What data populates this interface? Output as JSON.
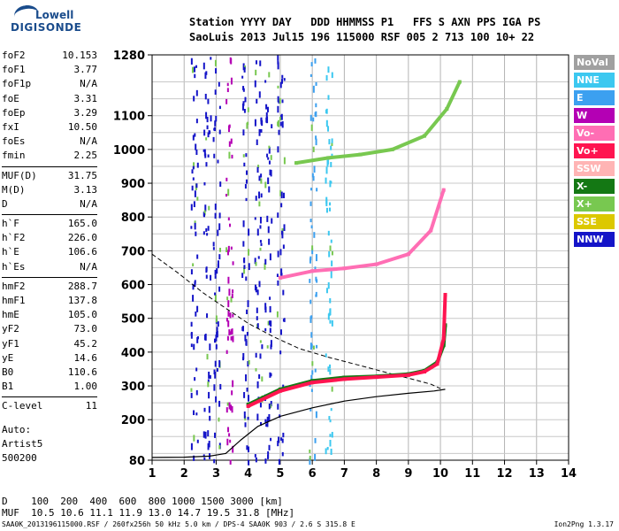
{
  "header": {
    "logo_line1": "Lowell",
    "logo_line2": "DIGISONDE",
    "row1": "Station YYYY DAY   DDD HHMMSS P1   FFS S AXN PPS IGA PS",
    "row2": "SaoLuis 2013 Jul15 196 115000 RSF 005 2 713 100 10+ 22"
  },
  "params": [
    {
      "label": "foF2",
      "value": "10.153"
    },
    {
      "label": "foF1",
      "value": "3.77"
    },
    {
      "label": "foF1p",
      "value": "N/A"
    },
    {
      "label": "foE",
      "value": "3.31"
    },
    {
      "label": "foEp",
      "value": "3.29"
    },
    {
      "label": "fxI",
      "value": "10.50"
    },
    {
      "label": "foEs",
      "value": "N/A"
    },
    {
      "label": "fmin",
      "value": "2.25"
    },
    {
      "label": "MUF(D)",
      "value": "31.75"
    },
    {
      "label": "M(D)",
      "value": "3.13"
    },
    {
      "label": "D",
      "value": "N/A"
    },
    {
      "label": "h`F",
      "value": "165.0"
    },
    {
      "label": "h`F2",
      "value": "226.0"
    },
    {
      "label": "h`E",
      "value": "106.6"
    },
    {
      "label": "h`Es",
      "value": "N/A"
    },
    {
      "label": "hmF2",
      "value": "288.7"
    },
    {
      "label": "hmF1",
      "value": "137.8"
    },
    {
      "label": "hmE",
      "value": "105.0"
    },
    {
      "label": "yF2",
      "value": "73.0"
    },
    {
      "label": "yF1",
      "value": "45.2"
    },
    {
      "label": "yE",
      "value": "14.6"
    },
    {
      "label": "B0",
      "value": "110.6"
    },
    {
      "label": "B1",
      "value": "1.00"
    },
    {
      "label": "C-level",
      "value": "11"
    }
  ],
  "auto_lines": [
    "Auto:",
    "Artist5",
    "500200"
  ],
  "legend": [
    {
      "label": "NoVal",
      "color": "#a0a0a0"
    },
    {
      "label": "NNE",
      "color": "#3cc8f0"
    },
    {
      "label": "E",
      "color": "#3ca0f0"
    },
    {
      "label": "W",
      "color": "#b400b4"
    },
    {
      "label": "Vo-",
      "color": "#ff6eb4"
    },
    {
      "label": "Vo+",
      "color": "#ff1450"
    },
    {
      "label": "SSW",
      "color": "#ffb4b4"
    },
    {
      "label": "X-",
      "color": "#147814"
    },
    {
      "label": "X+",
      "color": "#78c850"
    },
    {
      "label": "SSE",
      "color": "#dcc800"
    },
    {
      "label": "NNW",
      "color": "#1414c8"
    }
  ],
  "muf_table": {
    "row_d": "D    100  200  400  600  800 1000 1500 3000 [km]",
    "row_muf": "MUF  10.5 10.6 11.1 11.9 13.0 14.7 19.5 31.8 [MHz]"
  },
  "footer": {
    "left": "SAA0K_2013196115000.RSF / 260fx256h 50 kHz 5.0 km / DPS-4 SAA0K 903 / 2.6 S 315.8 E",
    "right": "Ion2Png 1.3.17"
  },
  "chart_data": {
    "type": "scatter",
    "x_ticks": [
      1,
      2,
      3,
      4,
      5,
      6,
      7,
      8,
      9,
      10,
      11,
      12,
      13,
      14
    ],
    "y_ticks": [
      80,
      200,
      300,
      400,
      500,
      600,
      700,
      800,
      900,
      1000,
      1100,
      1280
    ],
    "xlim": [
      1,
      14
    ],
    "ylim": [
      80,
      1280
    ],
    "grid": true,
    "profile_curve": [
      [
        1.0,
        88
      ],
      [
        2.0,
        89
      ],
      [
        2.8,
        92
      ],
      [
        3.3,
        100
      ],
      [
        3.77,
        140
      ],
      [
        4.3,
        180
      ],
      [
        5.0,
        210
      ],
      [
        6.0,
        235
      ],
      [
        7.0,
        255
      ],
      [
        8.0,
        268
      ],
      [
        9.0,
        278
      ],
      [
        9.8,
        285
      ],
      [
        10.15,
        290
      ]
    ],
    "model_curve": [
      [
        1.0,
        690
      ],
      [
        1.8,
        635
      ],
      [
        2.6,
        575
      ],
      [
        3.3,
        530
      ],
      [
        4.0,
        485
      ],
      [
        4.8,
        445
      ],
      [
        5.6,
        410
      ],
      [
        6.5,
        385
      ],
      [
        7.5,
        360
      ],
      [
        8.5,
        335
      ],
      [
        9.2,
        318
      ],
      [
        9.7,
        305
      ],
      [
        10.0,
        292
      ]
    ],
    "traces": [
      {
        "name": "X-",
        "color": "#147814",
        "points": [
          [
            4.0,
            245
          ],
          [
            5.0,
            290
          ],
          [
            6.0,
            315
          ],
          [
            7.0,
            325
          ],
          [
            8.0,
            328
          ],
          [
            9.0,
            335
          ],
          [
            9.5,
            345
          ],
          [
            9.9,
            370
          ],
          [
            10.1,
            420
          ],
          [
            10.15,
            480
          ]
        ]
      },
      {
        "name": "Vo+",
        "color": "#ff1450",
        "points": [
          [
            4.0,
            240
          ],
          [
            5.0,
            285
          ],
          [
            6.0,
            310
          ],
          [
            7.0,
            320
          ],
          [
            8.0,
            326
          ],
          [
            9.0,
            332
          ],
          [
            9.5,
            342
          ],
          [
            9.9,
            365
          ],
          [
            10.1,
            440
          ],
          [
            10.15,
            570
          ]
        ]
      },
      {
        "name": "X+",
        "color": "#78c850",
        "points": [
          [
            5.5,
            960
          ],
          [
            6.5,
            975
          ],
          [
            7.5,
            985
          ],
          [
            8.5,
            1000
          ],
          [
            9.5,
            1040
          ],
          [
            10.2,
            1120
          ],
          [
            10.6,
            1200
          ]
        ]
      },
      {
        "name": "Vo-",
        "color": "#ff6eb4",
        "points": [
          [
            5.0,
            620
          ],
          [
            6.0,
            640
          ],
          [
            7.0,
            648
          ],
          [
            8.0,
            660
          ],
          [
            9.0,
            690
          ],
          [
            9.7,
            760
          ],
          [
            10.1,
            880
          ]
        ]
      }
    ]
  }
}
